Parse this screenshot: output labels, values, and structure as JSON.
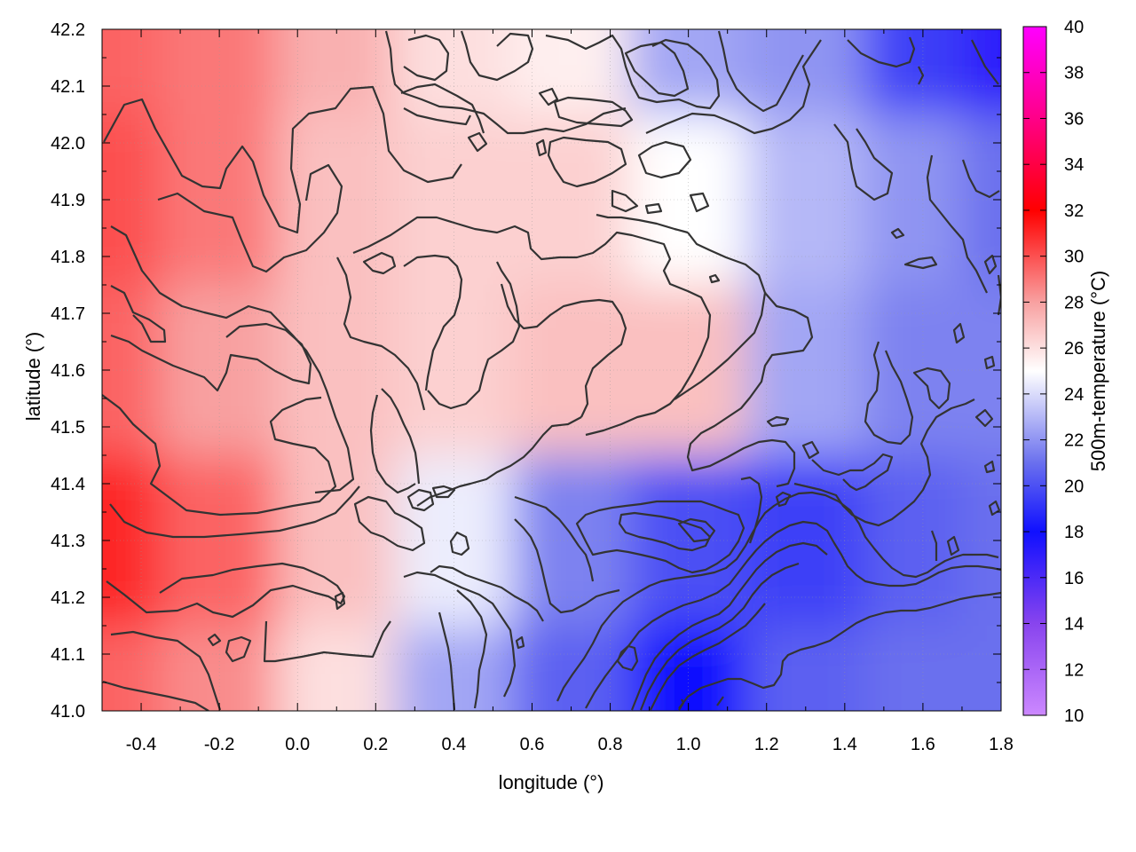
{
  "chart_data": {
    "type": "heatmap",
    "title": "",
    "xlabel": "longitude (°)",
    "ylabel": "latitude (°)",
    "colorbar_label": "500m-temperature (°C)",
    "xlim": [
      -0.5,
      1.8
    ],
    "ylim": [
      41.0,
      42.2
    ],
    "colorbar_range": [
      10,
      40
    ],
    "x_ticks": [
      "-0.4",
      "-0.2",
      "0.0",
      "0.2",
      "0.4",
      "0.6",
      "0.8",
      "1.0",
      "1.2",
      "1.4",
      "1.6",
      "1.8"
    ],
    "x_tick_values": [
      -0.4,
      -0.2,
      0.0,
      0.2,
      0.4,
      0.6,
      0.8,
      1.0,
      1.2,
      1.4,
      1.6,
      1.8
    ],
    "y_ticks": [
      "41.0",
      "41.1",
      "41.2",
      "41.3",
      "41.4",
      "41.5",
      "41.6",
      "41.7",
      "41.8",
      "41.9",
      "42.0",
      "42.1",
      "42.2"
    ],
    "y_tick_values": [
      41.0,
      41.1,
      41.2,
      41.3,
      41.4,
      41.5,
      41.6,
      41.7,
      41.8,
      41.9,
      42.0,
      42.1,
      42.2
    ],
    "colorbar_ticks": [
      "10",
      "12",
      "14",
      "16",
      "18",
      "20",
      "22",
      "24",
      "26",
      "28",
      "30",
      "32",
      "34",
      "36",
      "38",
      "40"
    ],
    "colorbar_tick_values": [
      10,
      12,
      14,
      16,
      18,
      20,
      22,
      24,
      26,
      28,
      30,
      32,
      34,
      36,
      38,
      40
    ],
    "colorscale": [
      {
        "value": 10,
        "color": "#cc88ff"
      },
      {
        "value": 14,
        "color": "#8844ee"
      },
      {
        "value": 18,
        "color": "#1010ff"
      },
      {
        "value": 21,
        "color": "#6a70ee"
      },
      {
        "value": 25,
        "color": "#ffffff"
      },
      {
        "value": 28,
        "color": "#f8a0a0"
      },
      {
        "value": 32,
        "color": "#ff0000"
      },
      {
        "value": 36,
        "color": "#ff0088"
      },
      {
        "value": 40,
        "color": "#ff00ff"
      }
    ],
    "grid": true,
    "field_description_grid": {
      "lon": [
        -0.5,
        -0.2,
        0.1,
        0.4,
        0.7,
        1.0,
        1.3,
        1.6,
        1.8
      ],
      "lat": [
        42.2,
        41.9,
        41.6,
        41.3,
        41.0
      ],
      "values": [
        [
          29.5,
          29.0,
          27.5,
          26.0,
          25.5,
          22.5,
          22.0,
          19.5,
          17.0
        ],
        [
          30.0,
          29.0,
          27.0,
          26.5,
          26.5,
          25.0,
          23.0,
          22.0,
          21.0
        ],
        [
          29.5,
          28.0,
          27.0,
          26.5,
          27.0,
          27.0,
          22.5,
          21.5,
          21.5
        ],
        [
          31.0,
          29.5,
          27.0,
          24.5,
          21.5,
          20.0,
          19.5,
          20.5,
          21.0
        ],
        [
          29.5,
          28.5,
          26.0,
          22.5,
          20.5,
          18.0,
          20.5,
          21.0,
          21.0
        ]
      ]
    }
  }
}
